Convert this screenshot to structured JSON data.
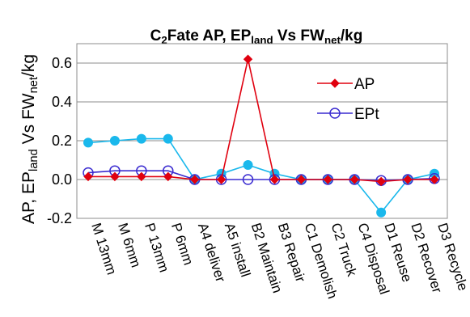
{
  "chart_data": {
    "type": "line",
    "title_parts": [
      {
        "text": "C",
        "sub": false
      },
      {
        "text": "2",
        "sub": true
      },
      {
        "text": "Fate AP, EP",
        "sub": false
      },
      {
        "text": "land",
        "sub": true
      },
      {
        "text": " Vs FW",
        "sub": false
      },
      {
        "text": "net",
        "sub": true
      },
      {
        "text": "/kg",
        "sub": false
      }
    ],
    "ylabel_parts": [
      {
        "text": "AP, EP",
        "sub": false
      },
      {
        "text": "land",
        "sub": true
      },
      {
        "text": " Vs FW",
        "sub": false
      },
      {
        "text": "net",
        "sub": true
      },
      {
        "text": "/kg",
        "sub": false
      }
    ],
    "categories": [
      "M 13mm",
      "M 6mm",
      "P 13mm",
      "P 6mm",
      "A4 deliver",
      "A5 install",
      "B2 Maintain",
      "B3 Repair",
      "C1 Demolish",
      "C2 Truck",
      "C4 Disposal",
      "D1 Reuse",
      "D2 Recover",
      "D3 Recycle"
    ],
    "ylim": [
      -0.2,
      0.7
    ],
    "yticks": [
      -0.2,
      0.0,
      0.2,
      0.4,
      0.6
    ],
    "ytick_labels": [
      "-0.2",
      "0.0",
      "0.2",
      "0.4",
      "0.6"
    ],
    "grid": true,
    "legend_position": "right",
    "series": [
      {
        "name": "AP",
        "color": "#e0000f",
        "marker": "diamond-filled",
        "in_legend": true,
        "values": [
          0.015,
          0.015,
          0.015,
          0.015,
          0.0,
          0.0,
          0.62,
          0.0,
          0.0,
          0.0,
          0.0,
          -0.01,
          0.0,
          0.0
        ]
      },
      {
        "name": "EPt",
        "color": "#3a2bd0",
        "marker": "circle-open",
        "in_legend": true,
        "values": [
          0.035,
          0.045,
          0.045,
          0.045,
          0.0,
          0.0,
          0.0,
          0.0,
          0.0,
          0.0,
          0.0,
          -0.005,
          0.0,
          0.005
        ]
      },
      {
        "name": "",
        "color": "#1ab8ec",
        "marker": "circle-filled",
        "in_legend": false,
        "values": [
          0.19,
          0.2,
          0.21,
          0.21,
          0.0,
          0.03,
          0.075,
          0.03,
          0.0,
          0.0,
          0.0,
          -0.17,
          0.0,
          0.03
        ]
      }
    ]
  }
}
